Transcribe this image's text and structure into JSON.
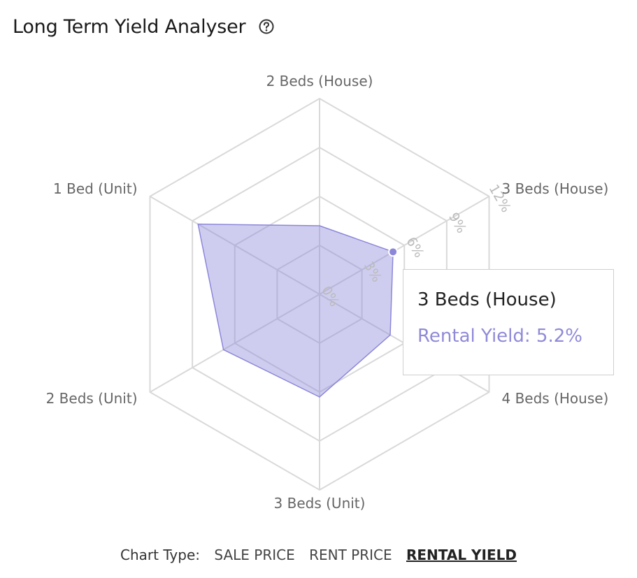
{
  "header": {
    "title": "Long Term Yield Analyser",
    "help_icon": "help-circle-icon"
  },
  "chart_data": {
    "type": "radar",
    "categories": [
      "2 Beds (House)",
      "3 Beds (House)",
      "4 Beds (House)",
      "3 Beds (Unit)",
      "2 Beds (Unit)",
      "1 Bed (Unit)"
    ],
    "series": [
      {
        "values": [
          4.2,
          5.2,
          5.0,
          6.3,
          6.8,
          8.6
        ],
        "color": "#8c87d9"
      }
    ],
    "rlim": [
      0,
      12
    ],
    "ticks": [
      "0%",
      "3%",
      "6%",
      "9%",
      "12%"
    ],
    "grid": true
  },
  "tooltip": {
    "title": "3 Beds (House)",
    "line": "Rental Yield: 5.2%"
  },
  "footer": {
    "label": "Chart Type:",
    "options": [
      "SALE PRICE",
      "RENT PRICE",
      "RENTAL YIELD"
    ],
    "active": "RENTAL YIELD"
  }
}
